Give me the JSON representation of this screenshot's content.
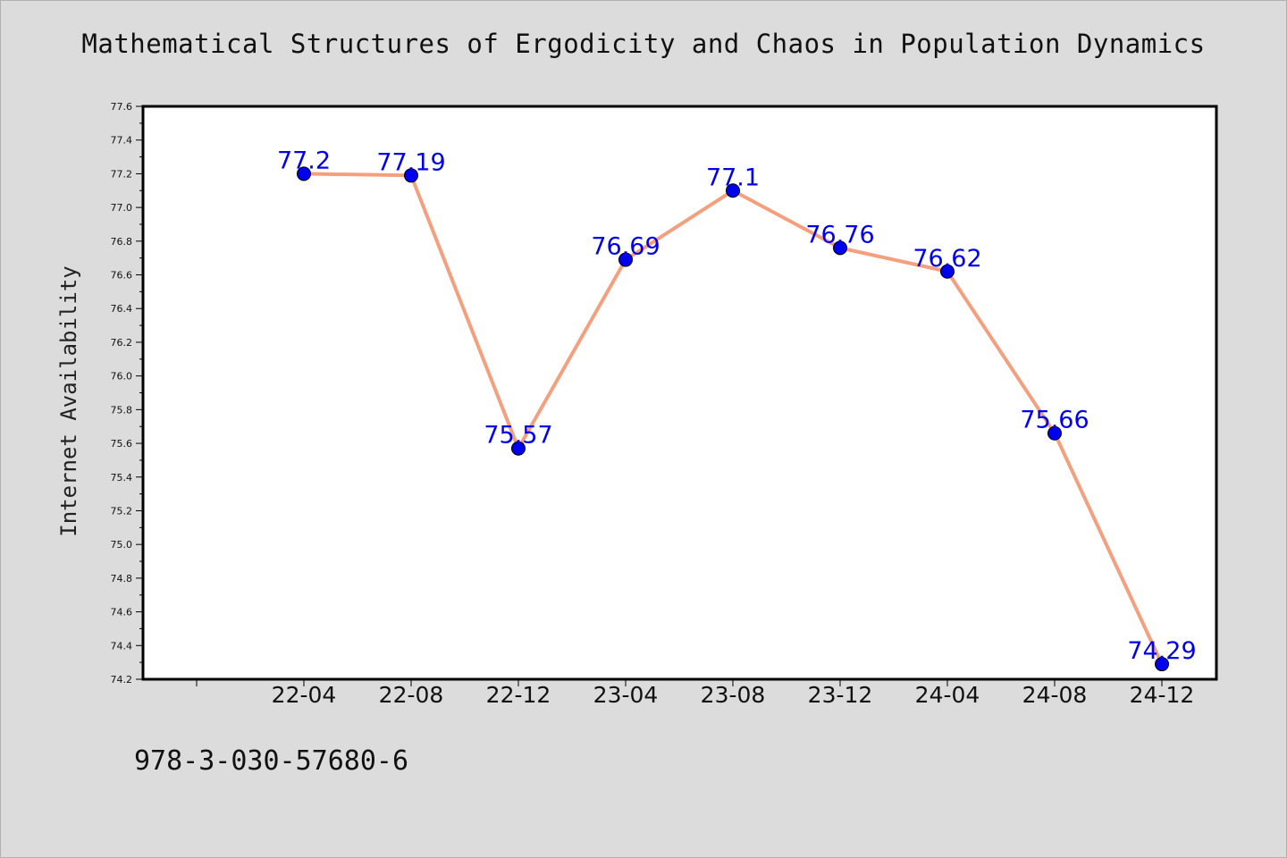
{
  "title": "Mathematical Structures of Ergodicity and Chaos in Population Dynamics",
  "footer": "978-3-030-57680-6",
  "chart_data": {
    "type": "line",
    "title": "Mathematical Structures of Ergodicity and Chaos in Population Dynamics",
    "xlabel": "",
    "ylabel": "Internet Availability",
    "categories": [
      "22-04",
      "22-08",
      "22-12",
      "23-04",
      "23-08",
      "23-12",
      "24-04",
      "24-08",
      "24-12"
    ],
    "series": [
      {
        "values": [
          77.2,
          77.19,
          75.57,
          76.69,
          77.1,
          76.76,
          76.62,
          75.66,
          74.29
        ],
        "labels": [
          "77.2",
          "77.19",
          "75.57",
          "76.69",
          "77.1",
          "76.76",
          "76.62",
          "75.66",
          "74.29"
        ]
      }
    ],
    "ylim": [
      74.2,
      77.6
    ],
    "yticks": [
      "74.2",
      "74.4",
      "74.6",
      "74.8",
      "75.0",
      "75.2",
      "75.4",
      "75.6",
      "75.8",
      "76.0",
      "76.2",
      "76.4",
      "76.6",
      "76.8",
      "77.0",
      "77.2",
      "77.4",
      "77.6"
    ],
    "grid": false,
    "colors": {
      "line": "#f4a07e",
      "marker": "#0000ee",
      "label": "#0000ee"
    }
  }
}
